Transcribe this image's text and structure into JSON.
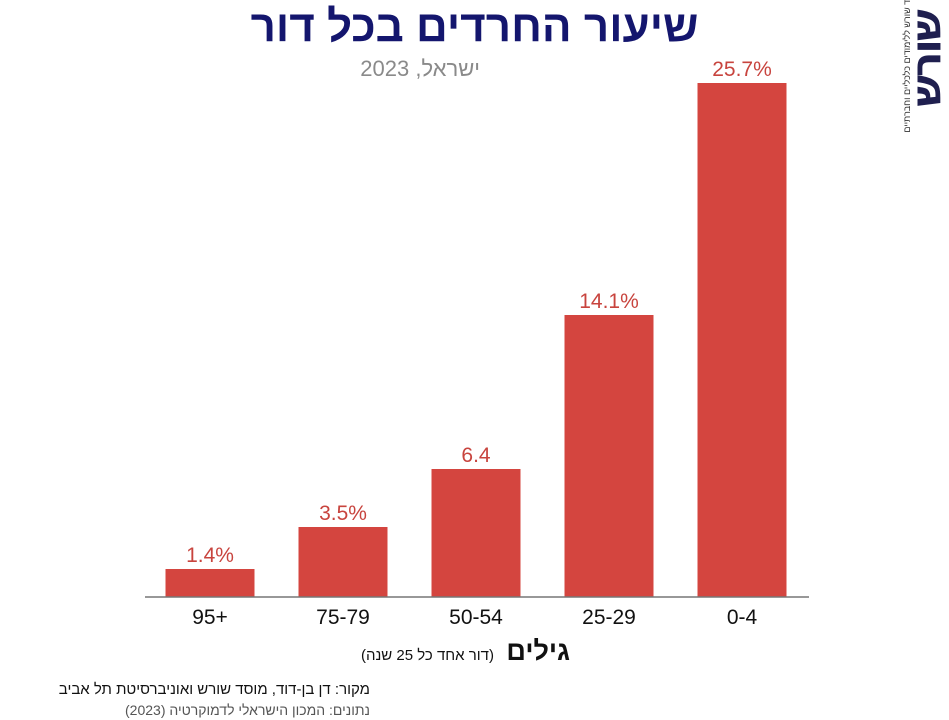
{
  "title": "שיעור החרדים בכל דור",
  "subtitle": "ישראל, 2023",
  "logo": {
    "word": "שורש",
    "tagline": "מוסד שורש ללימודים כלכליים וחברתיים"
  },
  "x_axis": {
    "label": "גילים",
    "note": "(דור אחד כל 25 שנה)"
  },
  "source": {
    "line1": "מקור:  דן בן-דוד, מוסד שורש ואוניברסיטת תל אביב",
    "line2": "נתונים: המכון הישראלי לדמוקרטיה (2023)"
  },
  "colors": {
    "bar": "#d4453f",
    "value_label": "#c8443e",
    "title": "#14166e"
  },
  "chart_data": {
    "type": "bar",
    "title": "שיעור החרדים בכל דור",
    "subtitle": "ישראל, 2023",
    "xlabel": "גילים",
    "ylabel": "",
    "categories": [
      "95+",
      "75-79",
      "50-54",
      "25-29",
      "0-4"
    ],
    "values": [
      1.4,
      3.5,
      6.4,
      14.1,
      25.7
    ],
    "value_labels": [
      "1.4%",
      "3.5%",
      "6.4",
      "14.1%",
      "25.7%"
    ],
    "ylim": [
      0,
      25.7
    ],
    "grid": false,
    "legend": "none"
  }
}
